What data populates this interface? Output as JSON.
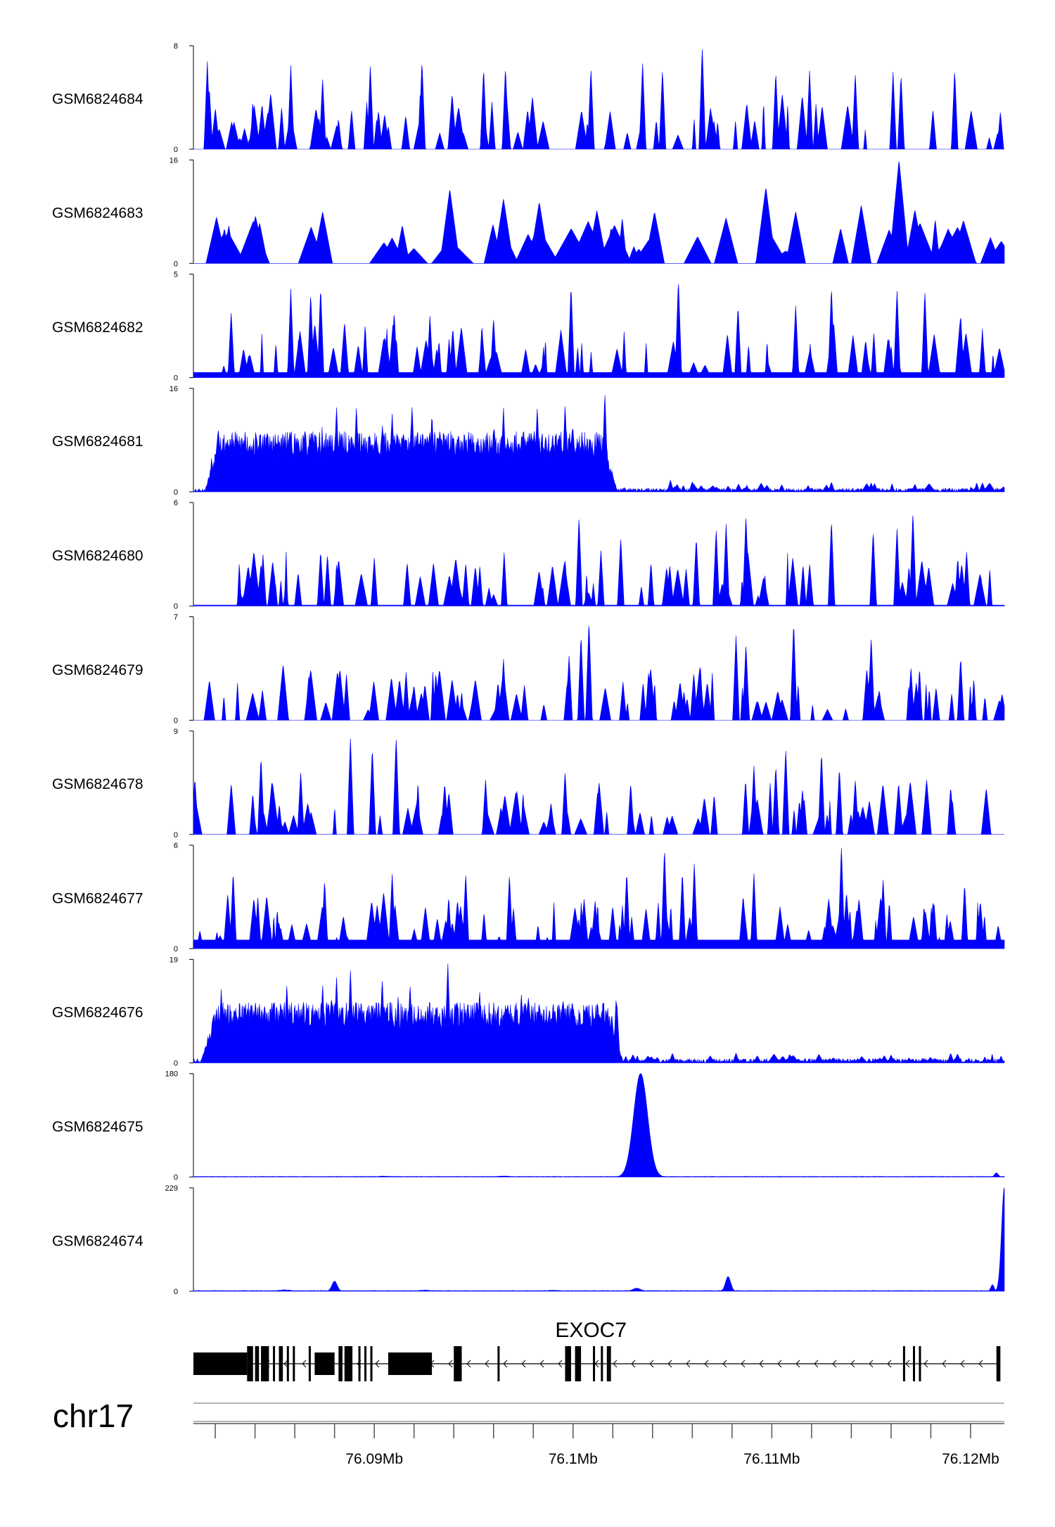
{
  "chart_data": {
    "type": "area",
    "title": "",
    "chromosome": "chr17",
    "xlabel": "",
    "ylabel": "",
    "xlim_mb": [
      76.0809,
      76.1217
    ],
    "x_ticks_mb": [
      76.09,
      76.1,
      76.11,
      76.12
    ],
    "x_tick_labels": [
      "76.09Mb",
      "76.1Mb",
      "76.11Mb",
      "76.12Mb"
    ],
    "minor_tick_step_mb": 0.002,
    "fill_color": "#0000ff",
    "tracks": [
      {
        "name": "GSM6824684",
        "ymax": 8,
        "ymax_label": "8",
        "ymin_label": "0",
        "style": "spiky",
        "baseline": 0.0,
        "density": 75,
        "seed": 11,
        "peaks": [
          [
            76.0816,
            6.8
          ],
          [
            76.0817,
            4.8
          ],
          [
            76.0858,
            6.5
          ],
          [
            76.0874,
            5.5
          ],
          [
            76.0898,
            6.6
          ],
          [
            76.0924,
            6.9
          ],
          [
            76.0955,
            6.3
          ],
          [
            76.0966,
            6.4
          ],
          [
            76.1009,
            6.3
          ],
          [
            76.1035,
            6.7
          ],
          [
            76.1045,
            6.2
          ],
          [
            76.1065,
            8.0
          ],
          [
            76.1102,
            6.0
          ],
          [
            76.1119,
            6.1
          ],
          [
            76.1142,
            5.9
          ],
          [
            76.1161,
            6.0
          ],
          [
            76.1165,
            5.8
          ],
          [
            76.1192,
            6.2
          ],
          [
            76.1215,
            2.9
          ]
        ]
      },
      {
        "name": "GSM6824683",
        "ymax": 16,
        "ymax_label": "16",
        "ymin_label": "0",
        "style": "triangles",
        "baseline": 0.0,
        "density": 55,
        "seed": 23,
        "peaks": [
          [
            76.0874,
            8.0
          ],
          [
            76.0938,
            11.5
          ],
          [
            76.0965,
            10.0
          ],
          [
            76.0983,
            9.5
          ],
          [
            76.1012,
            8.2
          ],
          [
            76.1041,
            8.0
          ],
          [
            76.1097,
            11.8
          ],
          [
            76.1112,
            8.0
          ],
          [
            76.1145,
            9.0
          ],
          [
            76.1164,
            16.0
          ],
          [
            76.1172,
            8.3
          ],
          [
            76.121,
            4.0
          ]
        ]
      },
      {
        "name": "GSM6824682",
        "ymax": 5,
        "ymax_label": "5",
        "ymin_label": "0",
        "style": "spiky",
        "baseline": 0.25,
        "density": 85,
        "seed": 37,
        "peaks": [
          [
            76.0828,
            3.2
          ],
          [
            76.0858,
            4.3
          ],
          [
            76.0868,
            4.1
          ],
          [
            76.0873,
            4.4
          ],
          [
            76.091,
            3.2
          ],
          [
            76.0928,
            3.0
          ],
          [
            76.096,
            2.9
          ],
          [
            76.0999,
            4.5
          ],
          [
            76.1053,
            4.8
          ],
          [
            76.1083,
            3.5
          ],
          [
            76.1112,
            3.5
          ],
          [
            76.113,
            4.4
          ],
          [
            76.1163,
            4.3
          ],
          [
            76.1177,
            4.2
          ],
          [
            76.1195,
            3.1
          ]
        ]
      },
      {
        "name": "GSM6824681",
        "ymax": 16,
        "ymax_label": "16",
        "ymin_label": "0",
        "style": "broad",
        "baseline": 0.0,
        "density": 90,
        "seed": 53,
        "block_start_mb": 76.0815,
        "block_end_mb": 76.1022,
        "block_level": 7.2,
        "block_ramp_mb": 0.0007,
        "tail_level": 0.35,
        "peaks": [
          [
            76.0835,
            9.5
          ],
          [
            76.0857,
            8.9
          ],
          [
            76.087,
            9.0
          ],
          [
            76.0881,
            13.3
          ],
          [
            76.0891,
            13.3
          ],
          [
            76.0909,
            12.3
          ],
          [
            76.0919,
            13.5
          ],
          [
            76.0929,
            12.2
          ],
          [
            76.0965,
            13.2
          ],
          [
            76.0982,
            13.3
          ],
          [
            76.0996,
            13.7
          ],
          [
            76.1016,
            15.5
          ],
          [
            76.1049,
            1.8
          ],
          [
            76.106,
            1.6
          ],
          [
            76.1078,
            0.9
          ],
          [
            76.1105,
            1.1
          ],
          [
            76.113,
            1.5
          ],
          [
            76.115,
            1.4
          ],
          [
            76.1172,
            1.2
          ]
        ]
      },
      {
        "name": "GSM6824680",
        "ymax": 6,
        "ymax_label": "6",
        "ymin_label": "0",
        "style": "spiky",
        "baseline": 0.05,
        "density": 70,
        "seed": 71,
        "peaks": [
          [
            76.0844,
            3.0
          ],
          [
            76.0873,
            3.2
          ],
          [
            76.09,
            2.8
          ],
          [
            76.0946,
            2.5
          ],
          [
            76.0996,
            2.7
          ],
          [
            76.1003,
            5.2
          ],
          [
            76.1024,
            4.0
          ],
          [
            76.1062,
            4.0
          ],
          [
            76.1072,
            4.5
          ],
          [
            76.1077,
            4.8
          ],
          [
            76.1087,
            5.3
          ],
          [
            76.113,
            5.0
          ],
          [
            76.1151,
            4.4
          ],
          [
            76.1163,
            4.6
          ],
          [
            76.1171,
            5.5
          ],
          [
            76.1198,
            3.2
          ]
        ]
      },
      {
        "name": "GSM6824679",
        "ymax": 7,
        "ymax_label": "7",
        "ymin_label": "0",
        "style": "spiky",
        "baseline": 0.0,
        "density": 80,
        "seed": 89,
        "peaks": [
          [
            76.0867,
            3.0
          ],
          [
            76.0886,
            3.1
          ],
          [
            76.0916,
            3.3
          ],
          [
            76.0931,
            3.2
          ],
          [
            76.0965,
            4.2
          ],
          [
            76.0998,
            4.4
          ],
          [
            76.1004,
            5.8
          ],
          [
            76.1008,
            6.8
          ],
          [
            76.1038,
            3.3
          ],
          [
            76.1064,
            3.8
          ],
          [
            76.1082,
            5.8
          ],
          [
            76.1087,
            5.2
          ],
          [
            76.1111,
            6.7
          ],
          [
            76.115,
            5.7
          ],
          [
            76.117,
            3.6
          ],
          [
            76.1195,
            4.3
          ]
        ]
      },
      {
        "name": "GSM6824678",
        "ymax": 9,
        "ymax_label": "9",
        "ymin_label": "0",
        "style": "spiky",
        "baseline": 0.0,
        "density": 75,
        "seed": 101,
        "peaks": [
          [
            76.0843,
            6.8
          ],
          [
            76.0863,
            5.5
          ],
          [
            76.0888,
            8.5
          ],
          [
            76.0899,
            7.6
          ],
          [
            76.0911,
            8.6
          ],
          [
            76.0956,
            4.8
          ],
          [
            76.0996,
            5.5
          ],
          [
            76.1029,
            4.5
          ],
          [
            76.1071,
            3.5
          ],
          [
            76.1091,
            6.0
          ],
          [
            76.1102,
            6.0
          ],
          [
            76.1107,
            7.5
          ],
          [
            76.1125,
            7.2
          ],
          [
            76.1134,
            5.8
          ],
          [
            76.1142,
            4.8
          ],
          [
            76.119,
            4.2
          ]
        ]
      },
      {
        "name": "GSM6824677",
        "ymax": 6,
        "ymax_label": "6",
        "ymin_label": "0",
        "style": "spiky",
        "baseline": 0.5,
        "density": 95,
        "seed": 131,
        "peaks": [
          [
            76.0829,
            4.5
          ],
          [
            76.0875,
            4.0
          ],
          [
            76.0909,
            4.4
          ],
          [
            76.0946,
            4.4
          ],
          [
            76.0968,
            4.3
          ],
          [
            76.1027,
            4.5
          ],
          [
            76.1046,
            5.9
          ],
          [
            76.1055,
            4.5
          ],
          [
            76.1061,
            5.0
          ],
          [
            76.1091,
            4.4
          ],
          [
            76.1135,
            6.0
          ],
          [
            76.1156,
            4.1
          ],
          [
            76.1197,
            3.8
          ]
        ]
      },
      {
        "name": "GSM6824676",
        "ymax": 19,
        "ymax_label": "19",
        "ymin_label": "0",
        "style": "broad",
        "baseline": 0.0,
        "density": 90,
        "seed": 151,
        "block_start_mb": 76.0813,
        "block_end_mb": 76.1025,
        "block_level": 8.5,
        "block_ramp_mb": 0.0008,
        "tail_level": 0.5,
        "peaks": [
          [
            76.0823,
            13.5
          ],
          [
            76.0838,
            11.5
          ],
          [
            76.0856,
            14.5
          ],
          [
            76.0874,
            14.5
          ],
          [
            76.0881,
            16.0
          ],
          [
            76.0888,
            17.3
          ],
          [
            76.0904,
            15.7
          ],
          [
            76.0912,
            12.5
          ],
          [
            76.0918,
            14.6
          ],
          [
            76.0937,
            18.5
          ],
          [
            76.0953,
            13.5
          ],
          [
            76.0967,
            11.0
          ],
          [
            76.0974,
            13.0
          ],
          [
            76.099,
            11.5
          ],
          [
            76.1022,
            11.5
          ],
          [
            76.105,
            1.8
          ],
          [
            76.1082,
            1.8
          ],
          [
            76.1109,
            1.6
          ],
          [
            76.116,
            1.5
          ],
          [
            76.119,
            1.8
          ]
        ]
      },
      {
        "name": "GSM6824675",
        "ymax": 180,
        "ymax_label": "180",
        "ymin_label": "0",
        "style": "smooth",
        "baseline": 0.6,
        "density": 0,
        "seed": 167,
        "bumps": [
          [
            76.1034,
            180.0,
            0.00035
          ],
          [
            76.1213,
            7.0,
            9e-05
          ],
          [
            76.0905,
            1.2,
            0.0003
          ],
          [
            76.0965,
            1.5,
            0.0003
          ]
        ]
      },
      {
        "name": "GSM6824674",
        "ymax": 229,
        "ymax_label": "229",
        "ymin_label": "0",
        "style": "smooth",
        "baseline": 0.9,
        "density": 0,
        "seed": 181,
        "bumps": [
          [
            76.1217,
            229.0,
            0.00014
          ],
          [
            76.1211,
            14.0,
            8e-05
          ],
          [
            76.1078,
            32.0,
            0.00013
          ],
          [
            76.088,
            22.0,
            0.00013
          ],
          [
            76.1032,
            6.0,
            0.0002
          ],
          [
            76.0855,
            2.5,
            0.0003
          ],
          [
            76.0925,
            2.0,
            0.0003
          ],
          [
            76.099,
            1.8,
            0.0003
          ]
        ]
      }
    ],
    "gene": {
      "name": "EXOC7",
      "strand": "-",
      "start_mb": 76.0809,
      "end_mb": 76.1215,
      "blocks_mb": [
        [
          76.0809,
          76.0836
        ],
        [
          76.0836,
          76.0839
        ],
        [
          76.084,
          76.0842
        ],
        [
          76.0843,
          76.0847
        ],
        [
          76.0849,
          76.085
        ],
        [
          76.0852,
          76.0854
        ],
        [
          76.0856,
          76.0857
        ],
        [
          76.0859,
          76.086
        ],
        [
          76.0867,
          76.0868
        ],
        [
          76.087,
          76.088
        ],
        [
          76.0882,
          76.0884
        ],
        [
          76.0885,
          76.0889
        ],
        [
          76.0892,
          76.0893
        ],
        [
          76.0895,
          76.0896
        ],
        [
          76.0898,
          76.0899
        ],
        [
          76.0907,
          76.0929
        ],
        [
          76.094,
          76.0944
        ],
        [
          76.0962,
          76.0963
        ],
        [
          76.0996,
          76.0999
        ],
        [
          76.1001,
          76.1004
        ],
        [
          76.101,
          76.1011
        ],
        [
          76.1014,
          76.1015
        ],
        [
          76.1017,
          76.1018
        ],
        [
          76.1018,
          76.1019
        ],
        [
          76.1166,
          76.1167
        ],
        [
          76.1171,
          76.1172
        ],
        [
          76.1174,
          76.1175
        ],
        [
          76.1213,
          76.1215
        ]
      ],
      "thick_blocks_mb": [
        [
          76.0809,
          76.0836
        ],
        [
          76.087,
          76.088
        ],
        [
          76.0907,
          76.0929
        ]
      ]
    }
  }
}
